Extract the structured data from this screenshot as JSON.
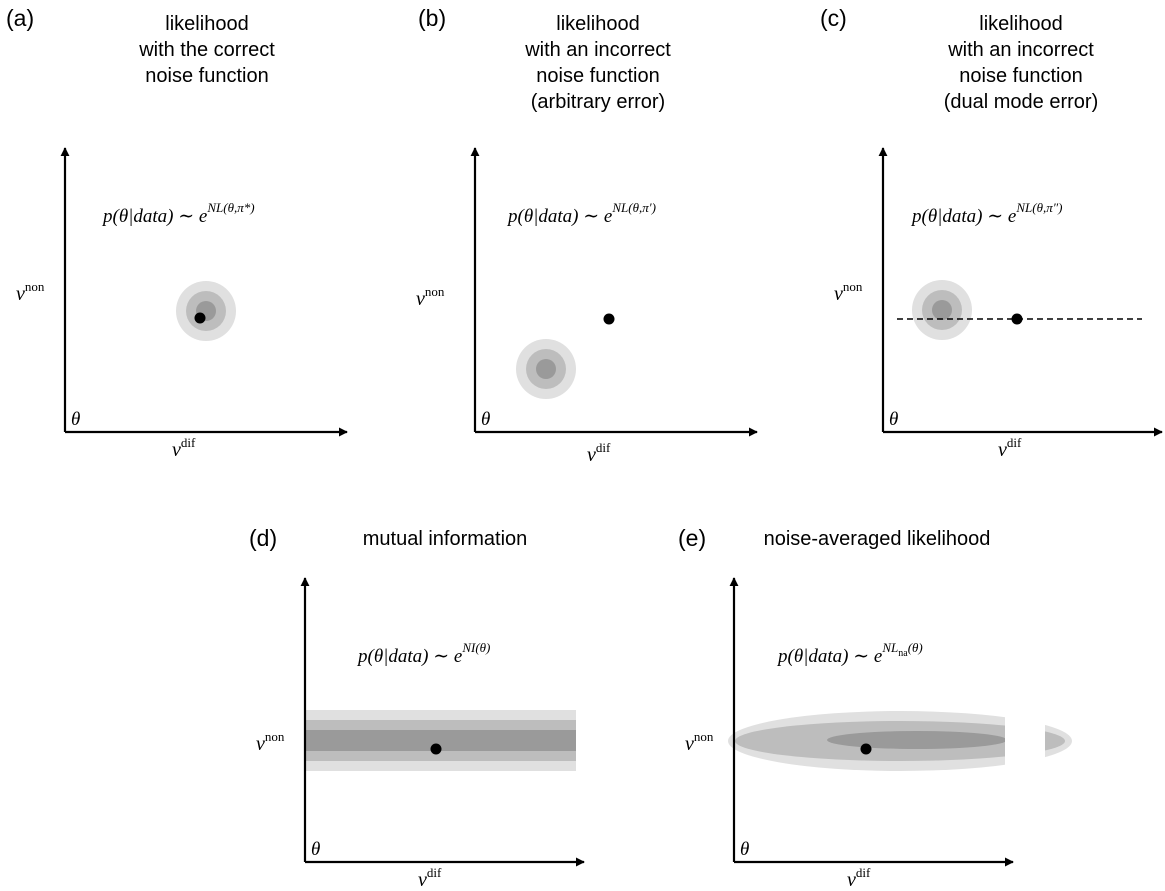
{
  "colors": {
    "outer": "#e0e0e0",
    "mid": "#bdbdbd",
    "inner": "#9a9a9a",
    "axis": "#000000",
    "point": "#000000"
  },
  "axes": {
    "theta": "θ",
    "v": "v",
    "non": "non",
    "dif": "dif"
  },
  "formula": {
    "lhs": "p(θ|data) ∼ e"
  },
  "panels": {
    "a": {
      "tag": "(a)",
      "title": [
        "likelihood",
        "with the correct",
        "noise function"
      ],
      "exponent": "NL(θ,π*)",
      "blob": "circle"
    },
    "b": {
      "tag": "(b)",
      "title": [
        "likelihood",
        "with an incorrect",
        "noise function",
        "(arbitrary error)"
      ],
      "exponent": "NL(θ,π′)",
      "blob": "circle"
    },
    "c": {
      "tag": "(c)",
      "title": [
        "likelihood",
        "with an incorrect",
        "noise function",
        "(dual mode error)"
      ],
      "exponent": "NL(θ,π″)",
      "blob": "circle",
      "dashed_line": true
    },
    "d": {
      "tag": "(d)",
      "title": [
        "mutual information"
      ],
      "exponent": "NI(θ)",
      "blob": "band"
    },
    "e": {
      "tag": "(e)",
      "title": [
        "noise-averaged likelihood"
      ],
      "exponent": "NL",
      "exponent_sub": "na",
      "exponent_after": "(θ)",
      "blob": "ellipse"
    }
  }
}
